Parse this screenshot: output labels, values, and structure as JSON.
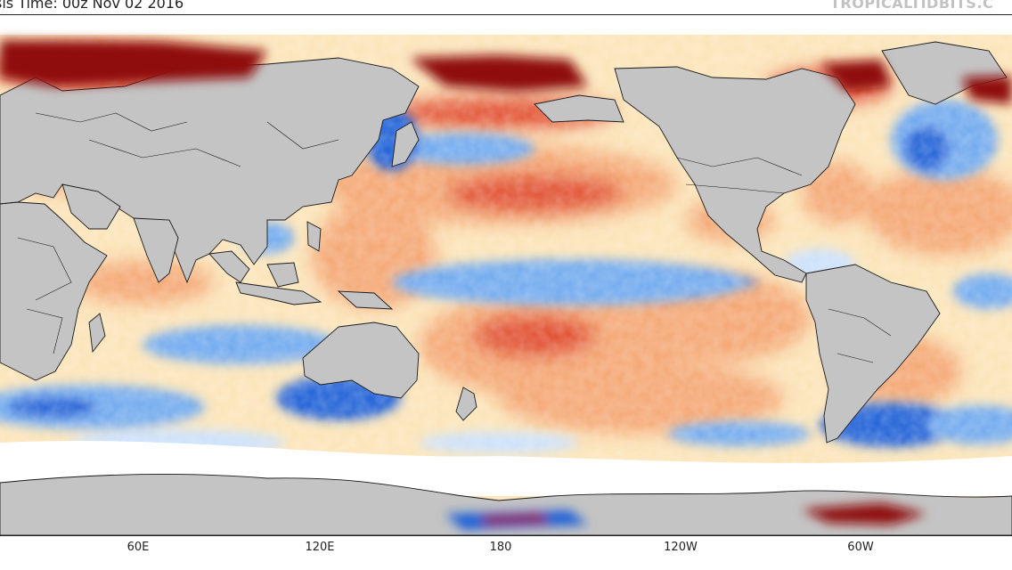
{
  "header": {
    "analysis_time": "sis Time: 00z Nov 02 2016",
    "watermark": "TROPICALTIDBITS.C"
  },
  "map": {
    "projection": "equirectangular",
    "central_meridian": "150E",
    "field": "sea surface temperature anomaly",
    "colors": {
      "land": "#c4c4c4",
      "land_outline": "#1a1a1a",
      "ocean_neutral": "#ffffff",
      "warm_light": "#fbe3b6",
      "warm": "#f4a571",
      "warm_strong": "#e04a2c",
      "warm_extreme": "#8f0d0d",
      "cool_light": "#c9e0fb",
      "cool": "#6ea8ee",
      "cool_strong": "#1f5fd6"
    }
  },
  "x_axis": {
    "ticks": [
      {
        "label": "60E"
      },
      {
        "label": "120E"
      },
      {
        "label": "180"
      },
      {
        "label": "120W"
      },
      {
        "label": "60W"
      }
    ]
  }
}
